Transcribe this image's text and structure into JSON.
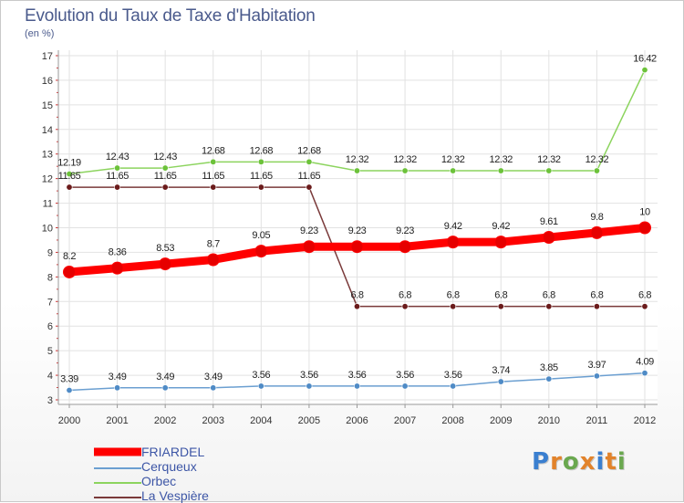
{
  "page": {
    "title": "Evolution du Taux de Taxe d'Habitation",
    "subtitle": "(en %)",
    "logo_text": "Proxiti",
    "logo_colors": [
      "#3a7fd0",
      "#e2832b",
      "#6aa84f",
      "#e2832b",
      "#3a7fd0",
      "#e2832b",
      "#6aa84f"
    ]
  },
  "chart_data": {
    "type": "line",
    "title": "Evolution du Taux de Taxe d'Habitation",
    "ylabel": "(en %)",
    "xlabel": "",
    "categories": [
      "2000",
      "2001",
      "2002",
      "2003",
      "2004",
      "2005",
      "2006",
      "2007",
      "2008",
      "2009",
      "2010",
      "2011",
      "2012"
    ],
    "ylim": [
      3,
      17
    ],
    "yticks": [
      "3",
      "4",
      "5",
      "6",
      "7",
      "8",
      "9",
      "10",
      "11",
      "12",
      "13",
      "14",
      "15",
      "16",
      "17"
    ],
    "grid": true,
    "legend_position": "bottom-left",
    "series": [
      {
        "name": "FRIARDEL",
        "color": "#ff0000",
        "marker_color": "#e60000",
        "weight": "heavy",
        "values": [
          8.2,
          8.36,
          8.53,
          8.7,
          9.05,
          9.23,
          9.23,
          9.23,
          9.42,
          9.42,
          9.61,
          9.8,
          10
        ],
        "labels": [
          "8.2",
          "8.36",
          "8.53",
          "8.7",
          "9.05",
          "9.23",
          "9.23",
          "9.23",
          "9.42",
          "9.42",
          "9.61",
          "9.8",
          "10"
        ]
      },
      {
        "name": "Cerqueux",
        "color": "#6b9fd1",
        "marker_color": "#4f8bc6",
        "weight": "light",
        "values": [
          3.39,
          3.49,
          3.49,
          3.49,
          3.56,
          3.56,
          3.56,
          3.56,
          3.56,
          3.74,
          3.85,
          3.97,
          4.09
        ],
        "labels": [
          "3.39",
          "3.49",
          "3.49",
          "3.49",
          "3.56",
          "3.56",
          "3.56",
          "3.56",
          "3.56",
          "3.74",
          "3.85",
          "3.97",
          "4.09"
        ]
      },
      {
        "name": "Orbec",
        "color": "#8cd45e",
        "marker_color": "#6cc23a",
        "weight": "light",
        "values": [
          12.19,
          12.43,
          12.43,
          12.68,
          12.68,
          12.68,
          12.32,
          12.32,
          12.32,
          12.32,
          12.32,
          12.32,
          16.42
        ],
        "labels": [
          "12.19",
          "12.43",
          "12.43",
          "12.68",
          "12.68",
          "12.68",
          "12.32",
          "12.32",
          "12.32",
          "12.32",
          "12.32",
          "12.32",
          "16.42"
        ]
      },
      {
        "name": "La Vespière",
        "color": "#7a3a3a",
        "marker_color": "#6b1b1b",
        "weight": "light",
        "values": [
          11.65,
          11.65,
          11.65,
          11.65,
          11.65,
          11.65,
          6.8,
          6.8,
          6.8,
          6.8,
          6.8,
          6.8,
          6.8
        ],
        "labels": [
          "11.65",
          "11.65",
          "11.65",
          "11.65",
          "11.65",
          "11.65",
          "6.8",
          "6.8",
          "6.8",
          "6.8",
          "6.8",
          "6.8",
          "6.8"
        ]
      }
    ]
  },
  "legend": {
    "items": [
      {
        "label": "FRIARDEL"
      },
      {
        "label": "Cerqueux"
      },
      {
        "label": "Orbec"
      },
      {
        "label": "La Vespière"
      }
    ]
  }
}
